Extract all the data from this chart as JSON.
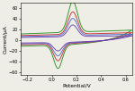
{
  "title": "",
  "xlabel": "Potential/V",
  "ylabel": "Current/μA",
  "xlim": [
    -0.25,
    0.65
  ],
  "ylim": [
    -65,
    70
  ],
  "xticks": [
    -0.2,
    0.0,
    0.2,
    0.4,
    0.6
  ],
  "yticks": [
    -60,
    -40,
    -20,
    0,
    20,
    40,
    60
  ],
  "background": "#eeede6",
  "curves": [
    {
      "color": "#1a8a1a",
      "peak_anodic": 58,
      "peak_cathodic": -44,
      "base_scale": 1.0
    },
    {
      "color": "#cc2222",
      "peak_anodic": 42,
      "peak_cathodic": -32,
      "base_scale": 0.75
    },
    {
      "color": "#4466cc",
      "peak_anodic": 32,
      "peak_cathodic": -24,
      "base_scale": 0.6
    },
    {
      "color": "#6633aa",
      "peak_anodic": 22,
      "peak_cathodic": -16,
      "base_scale": 0.45
    }
  ]
}
